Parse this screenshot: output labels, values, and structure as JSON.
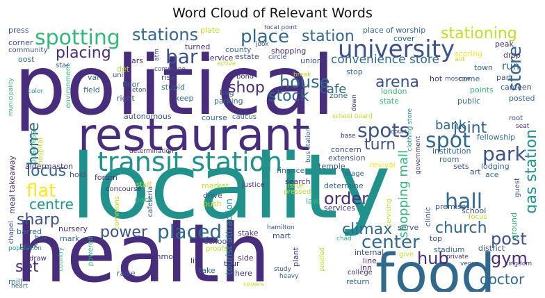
{
  "title": "Word Cloud of Relevant Words",
  "words": [
    {
      "text": "political",
      "color": "#472d7b"
    },
    {
      "text": "locality",
      "color": "#21918c"
    },
    {
      "text": "health",
      "color": "#472d7b"
    },
    {
      "text": "restaurant",
      "color": "#472d7b"
    },
    {
      "text": "food",
      "color": "#31688e"
    },
    {
      "text": "transit station",
      "color": "#21918c"
    },
    {
      "text": "university",
      "color": "#3b528b"
    },
    {
      "text": "spotting",
      "color": "#35b779"
    },
    {
      "text": "stations",
      "color": "#31688e"
    },
    {
      "text": "place",
      "color": "#31688e"
    },
    {
      "text": "station",
      "color": "#31688e"
    },
    {
      "text": "stationing",
      "color": "#bddf26"
    },
    {
      "text": "placing",
      "color": "#472d7b"
    },
    {
      "text": "bar",
      "color": "#3b528b"
    },
    {
      "text": "store",
      "color": "#31688e"
    },
    {
      "text": "spots",
      "color": "#3b528b"
    },
    {
      "text": "spot",
      "color": "#31688e"
    },
    {
      "text": "park",
      "color": "#3b528b"
    },
    {
      "text": "house",
      "color": "#31688e"
    },
    {
      "text": "shop",
      "color": "#472d7b"
    },
    {
      "text": "stock",
      "color": "#31688e"
    },
    {
      "text": "cafe",
      "color": "#31688e"
    },
    {
      "text": "arena",
      "color": "#3b528b"
    },
    {
      "text": "convenience store",
      "color": "#31688e"
    },
    {
      "text": "joint",
      "color": "#31688e"
    },
    {
      "text": "bank",
      "color": "#31688e"
    },
    {
      "text": "turn",
      "color": "#3b528b"
    },
    {
      "text": "home",
      "color": "#31688e"
    },
    {
      "text": "locus",
      "color": "#31688e"
    },
    {
      "text": "flat",
      "color": "#fde725"
    },
    {
      "text": "centre",
      "color": "#21918c"
    },
    {
      "text": "sharp",
      "color": "#3b528b"
    },
    {
      "text": "power",
      "color": "#3b528b"
    },
    {
      "text": "placed",
      "color": "#31688e"
    },
    {
      "text": "order",
      "color": "#472d7b"
    },
    {
      "text": "hall",
      "color": "#31688e"
    },
    {
      "text": "church",
      "color": "#31688e"
    },
    {
      "text": "climax",
      "color": "#31688e"
    },
    {
      "text": "center",
      "color": "#31688e"
    },
    {
      "text": "hub",
      "color": "#472d7b"
    },
    {
      "text": "post",
      "color": "#3b528b"
    },
    {
      "text": "gym",
      "color": "#472d7b"
    },
    {
      "text": "doctor",
      "color": "#31688e"
    },
    {
      "text": "set",
      "color": "#472d7b"
    },
    {
      "text": "gas station",
      "color": "#21918c"
    },
    {
      "text": "shopping mall",
      "color": "#35b779"
    },
    {
      "text": "tourist attraction",
      "color": "#21918c"
    },
    {
      "text": "press",
      "color": "#3b528b"
    },
    {
      "text": "corner",
      "color": "#3b528b"
    },
    {
      "text": "community",
      "color": "#3b528b"
    },
    {
      "text": "oost",
      "color": "#31688e"
    },
    {
      "text": "focal point",
      "color": "#3b528b"
    },
    {
      "text": "plate",
      "color": "#bddf26"
    },
    {
      "text": "turned",
      "color": "#472d7b"
    },
    {
      "text": "service",
      "color": "#472d7b"
    },
    {
      "text": "county",
      "color": "#31688e"
    },
    {
      "text": "jook",
      "color": "#3b528b"
    },
    {
      "text": "shopping",
      "color": "#472d7b"
    },
    {
      "text": "circle",
      "color": "#3b528b"
    },
    {
      "text": "union",
      "color": "#3b528b"
    },
    {
      "text": "place of worship",
      "color": "#31688e"
    },
    {
      "text": "cover",
      "color": "#31688e"
    },
    {
      "text": "peak",
      "color": "#472d7b"
    },
    {
      "text": "drop",
      "color": "#472d7b"
    },
    {
      "text": "run",
      "color": "#31688e"
    },
    {
      "text": "scoring",
      "color": "#fde725"
    },
    {
      "text": "aut",
      "color": "#bddf26"
    },
    {
      "text": "town",
      "color": "#31688e"
    },
    {
      "text": "part",
      "color": "#3b528b"
    },
    {
      "text": "canteen",
      "color": "#3b528b"
    },
    {
      "text": "posted",
      "color": "#31688e"
    },
    {
      "text": "public",
      "color": "#31688e"
    },
    {
      "text": "points",
      "color": "#35b779"
    },
    {
      "text": "come",
      "color": "#31688e"
    },
    {
      "text": "moscow",
      "color": "#3b528b"
    },
    {
      "text": "hot",
      "color": "#472d7b"
    },
    {
      "text": "stop",
      "color": "#31688e"
    },
    {
      "text": "break",
      "color": "#bddf26"
    },
    {
      "text": "london",
      "color": "#35b779"
    },
    {
      "text": "state",
      "color": "#35b779"
    },
    {
      "text": "zone",
      "color": "#31688e"
    },
    {
      "text": "star",
      "color": "#3b528b"
    },
    {
      "text": "bars",
      "color": "#472d7b"
    },
    {
      "text": "det",
      "color": "#bddf26"
    },
    {
      "text": "unit",
      "color": "#3b528b"
    },
    {
      "text": "atm",
      "color": "#3b528b"
    },
    {
      "text": "var",
      "color": "#31688e"
    },
    {
      "text": "field",
      "color": "#31688e"
    },
    {
      "text": "commune",
      "color": "#3b528b"
    },
    {
      "text": "floor",
      "color": "#31688e"
    },
    {
      "text": "eton",
      "color": "#3b528b"
    },
    {
      "text": "right",
      "color": "#3b528b"
    },
    {
      "text": "rise",
      "color": "#3b528b"
    },
    {
      "text": "stupid",
      "color": "#31688e"
    },
    {
      "text": "active",
      "color": "#bddf26"
    },
    {
      "text": "bond",
      "color": "#472d7b"
    },
    {
      "text": "estate",
      "color": "#3b528b"
    },
    {
      "text": "bag",
      "color": "#3b528b"
    },
    {
      "text": "parking",
      "color": "#31688e"
    },
    {
      "text": "keep",
      "color": "#31688e"
    },
    {
      "text": "color",
      "color": "#21918c"
    },
    {
      "text": "municipality",
      "color": "#35b779"
    },
    {
      "text": "environment",
      "color": "#35b779"
    },
    {
      "text": "autonomous",
      "color": "#3b528b"
    },
    {
      "text": "course",
      "color": "#31688e"
    },
    {
      "text": "caucus",
      "color": "#31688e"
    },
    {
      "text": "school board",
      "color": "#bddf26"
    },
    {
      "text": "base",
      "color": "#472d7b"
    },
    {
      "text": "down",
      "color": "#472d7b"
    },
    {
      "text": "bus station",
      "color": "#31688e"
    },
    {
      "text": "court",
      "color": "#3b528b"
    },
    {
      "text": "clothing store",
      "color": "#21918c"
    },
    {
      "text": "government",
      "color": "#472d7b"
    },
    {
      "text": "root",
      "color": "#3b528b"
    },
    {
      "text": "fellowship",
      "color": "#31688e"
    },
    {
      "text": "institution",
      "color": "#31688e"
    },
    {
      "text": "room",
      "color": "#31688e"
    },
    {
      "text": "lodging",
      "color": "#31688e"
    },
    {
      "text": "art",
      "color": "#3b528b"
    },
    {
      "text": "ace",
      "color": "#31688e"
    },
    {
      "text": "seat",
      "color": "#472d7b"
    },
    {
      "text": "guest",
      "color": "#3b528b"
    },
    {
      "text": "business",
      "color": "#35b779"
    },
    {
      "text": "hospital",
      "color": "#bddf26"
    },
    {
      "text": "meal takeaway",
      "color": "#472d7b"
    },
    {
      "text": "aldermaston",
      "color": "#472d7b"
    },
    {
      "text": "hold",
      "color": "#3b528b"
    },
    {
      "text": "determination",
      "color": "#472d7b"
    },
    {
      "text": "concourse",
      "color": "#472d7b"
    },
    {
      "text": "forum",
      "color": "#472d7b"
    },
    {
      "text": "concern",
      "color": "#3b528b"
    },
    {
      "text": "extension",
      "color": "#3b528b"
    },
    {
      "text": "temple",
      "color": "#3b528b"
    },
    {
      "text": "revival",
      "color": "#fde725"
    },
    {
      "text": "stage",
      "color": "#31688e"
    },
    {
      "text": "finance",
      "color": "#31688e"
    },
    {
      "text": "sets",
      "color": "#3b528b"
    },
    {
      "text": "premise",
      "color": "#3b528b"
    },
    {
      "text": "staff",
      "color": "#bddf26"
    },
    {
      "text": "market",
      "color": "#bddf26"
    },
    {
      "text": "justice",
      "color": "#472d7b"
    },
    {
      "text": "issue",
      "color": "#bddf26"
    },
    {
      "text": "search",
      "color": "#472d7b"
    },
    {
      "text": "pressed",
      "color": "#bddf26"
    },
    {
      "text": "determine",
      "color": "#31688e"
    },
    {
      "text": "law",
      "color": "#35b779"
    },
    {
      "text": "school",
      "color": "#3b528b"
    },
    {
      "text": "focus",
      "color": "#bddf26"
    },
    {
      "text": "ground",
      "color": "#35b779"
    },
    {
      "text": "pack",
      "color": "#35b779"
    },
    {
      "text": "drive",
      "color": "#3b528b"
    },
    {
      "text": "bush",
      "color": "#bddf26"
    },
    {
      "text": "commons",
      "color": "#bddf26"
    },
    {
      "text": "cafeteria",
      "color": "#3b528b"
    },
    {
      "text": "services",
      "color": "#472d7b"
    },
    {
      "text": "clinic",
      "color": "#3b528b"
    },
    {
      "text": "barred",
      "color": "#31688e"
    },
    {
      "text": "nursery",
      "color": "#472d7b"
    },
    {
      "text": "box",
      "color": "#3b528b"
    },
    {
      "text": "mark",
      "color": "#31688e"
    },
    {
      "text": "chapel",
      "color": "#3b528b"
    },
    {
      "text": "population",
      "color": "#21918c"
    },
    {
      "text": "prick",
      "color": "#3b528b"
    },
    {
      "text": "draw",
      "color": "#472d7b"
    },
    {
      "text": "mill",
      "color": "#31688e"
    },
    {
      "text": "heart",
      "color": "#31688e"
    },
    {
      "text": "country",
      "color": "#35b779"
    },
    {
      "text": "powered",
      "color": "#35b779"
    },
    {
      "text": "common",
      "color": "#472d7b"
    },
    {
      "text": "schools",
      "color": "#3b528b"
    },
    {
      "text": "proofs",
      "color": "#bddf26"
    },
    {
      "text": "life",
      "color": "#472d7b"
    },
    {
      "text": "take",
      "color": "#31688e"
    },
    {
      "text": "raise",
      "color": "#3b528b"
    },
    {
      "text": "stake",
      "color": "#472d7b"
    },
    {
      "text": "side",
      "color": "#472d7b"
    },
    {
      "text": "tour",
      "color": "#472d7b"
    },
    {
      "text": "here",
      "color": "#472d7b"
    },
    {
      "text": "covers",
      "color": "#bddf26"
    },
    {
      "text": "hamilton",
      "color": "#3b528b"
    },
    {
      "text": "mart",
      "color": "#3b528b"
    },
    {
      "text": "plant",
      "color": "#472d7b"
    },
    {
      "text": "chad",
      "color": "#35b779"
    },
    {
      "text": "study",
      "color": "#3b528b"
    },
    {
      "text": "heavy",
      "color": "#31688e"
    },
    {
      "text": "proofed",
      "color": "#bddf26"
    },
    {
      "text": "internal",
      "color": "#3b528b"
    },
    {
      "text": "line",
      "color": "#472d7b"
    },
    {
      "text": "inn",
      "color": "#472d7b"
    },
    {
      "text": "college",
      "color": "#472d7b"
    },
    {
      "text": "return",
      "color": "#31688e"
    },
    {
      "text": "serve",
      "color": "#3b528b"
    },
    {
      "text": "servicing",
      "color": "#bddf26"
    },
    {
      "text": "give",
      "color": "#bddf26"
    },
    {
      "text": "top",
      "color": "#3b528b"
    },
    {
      "text": "stadium",
      "color": "#31688e"
    },
    {
      "text": "private",
      "color": "#472d7b"
    },
    {
      "text": "district",
      "color": "#3b528b"
    },
    {
      "text": "venue",
      "color": "#3b528b"
    },
    {
      "text": "kingdom",
      "color": "#472d7b"
    }
  ]
}
